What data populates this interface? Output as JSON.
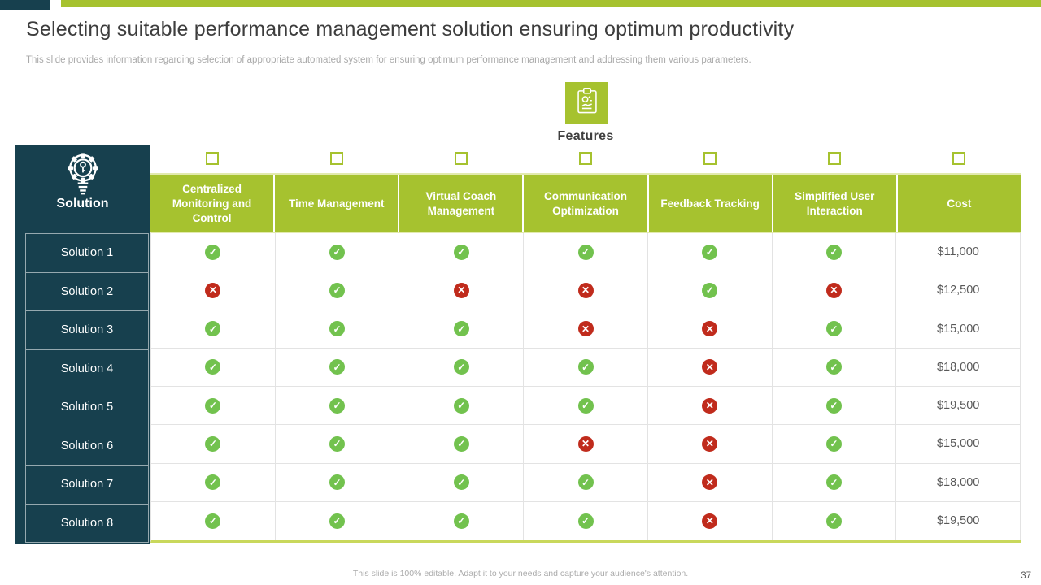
{
  "slide": {
    "title": "Selecting suitable performance management solution ensuring optimum productivity",
    "subtitle": "This slide provides information regarding selection of appropriate automated system for ensuring optimum performance management and addressing them various parameters.",
    "footer_note": "This slide is 100% editable.  Adapt it to your needs and capture your audience's attention.",
    "page_number": "37"
  },
  "features_section": {
    "label": "Features",
    "icon": "clipboard-icon"
  },
  "table": {
    "solution_header": "Solution",
    "solution_icon": "idea-gear-key-icon",
    "columns": [
      "Centralized Monitoring and Control",
      "Time Management",
      "Virtual Coach Management",
      "Communication Optimization",
      "Feedback Tracking",
      "Simplified User Interaction",
      "Cost"
    ],
    "rows": [
      {
        "label": "Solution 1",
        "features": [
          true,
          true,
          true,
          true,
          true,
          true
        ],
        "cost": "$11,000"
      },
      {
        "label": "Solution 2",
        "features": [
          false,
          true,
          false,
          false,
          true,
          false
        ],
        "cost": "$12,500"
      },
      {
        "label": "Solution 3",
        "features": [
          true,
          true,
          true,
          false,
          false,
          true
        ],
        "cost": "$15,000"
      },
      {
        "label": "Solution 4",
        "features": [
          true,
          true,
          true,
          true,
          false,
          true
        ],
        "cost": "$18,000"
      },
      {
        "label": "Solution 5",
        "features": [
          true,
          true,
          true,
          true,
          false,
          true
        ],
        "cost": "$19,500"
      },
      {
        "label": "Solution 6",
        "features": [
          true,
          true,
          true,
          false,
          false,
          true
        ],
        "cost": "$15,000"
      },
      {
        "label": "Solution 7",
        "features": [
          true,
          true,
          true,
          true,
          false,
          true
        ],
        "cost": "$18,000"
      },
      {
        "label": "Solution 8",
        "features": [
          true,
          true,
          true,
          true,
          false,
          true
        ],
        "cost": "$19,500"
      }
    ],
    "marks": {
      "available": "✓",
      "unavailable": "✕"
    }
  },
  "colors": {
    "accent_green": "#a6c22f",
    "teal": "#17404e",
    "check_green": "#72c24e",
    "cross_red": "#c02b1c",
    "title_text": "#3d3d3d",
    "muted_text": "#a9a9a9",
    "cost_text": "#595959"
  }
}
